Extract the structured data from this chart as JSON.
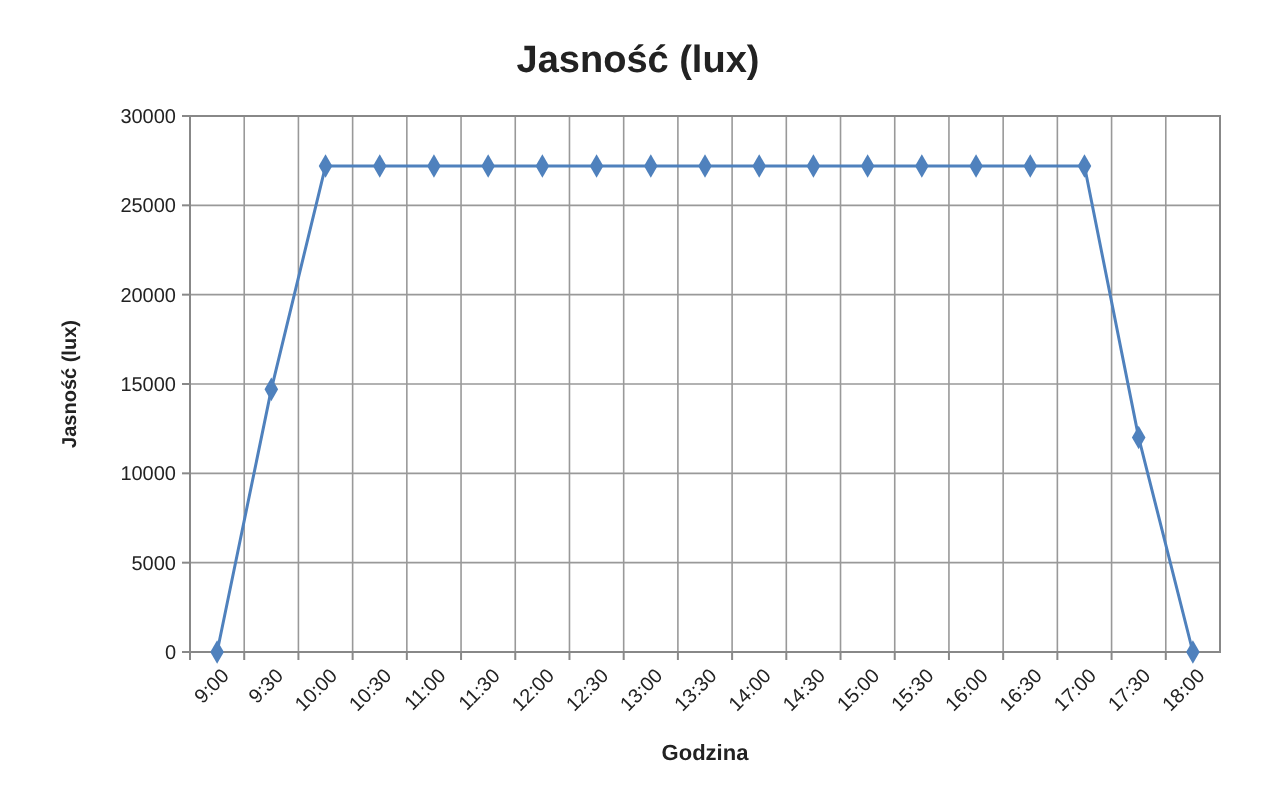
{
  "chart_data": {
    "type": "line",
    "title": "Jasność (lux)",
    "xlabel": "Godzina",
    "ylabel": "Jasność (lux)",
    "categories": [
      "9:00",
      "9:30",
      "10:00",
      "10:30",
      "11:00",
      "11:30",
      "12:00",
      "12:30",
      "13:00",
      "13:30",
      "14:00",
      "14:30",
      "15:00",
      "15:30",
      "16:00",
      "16:30",
      "17:00",
      "17:30",
      "18:00"
    ],
    "series": [
      {
        "color": "#4f81bd",
        "values": [
          0,
          14700,
          27200,
          27200,
          27200,
          27200,
          27200,
          27200,
          27200,
          27200,
          27200,
          27200,
          27200,
          27200,
          27200,
          27200,
          27200,
          12000,
          0
        ]
      }
    ],
    "ylim": [
      0,
      30000
    ],
    "yticks": [
      0,
      5000,
      10000,
      15000,
      20000,
      25000,
      30000
    ],
    "grid": true,
    "marker": "diamond",
    "line_style": "solid"
  }
}
